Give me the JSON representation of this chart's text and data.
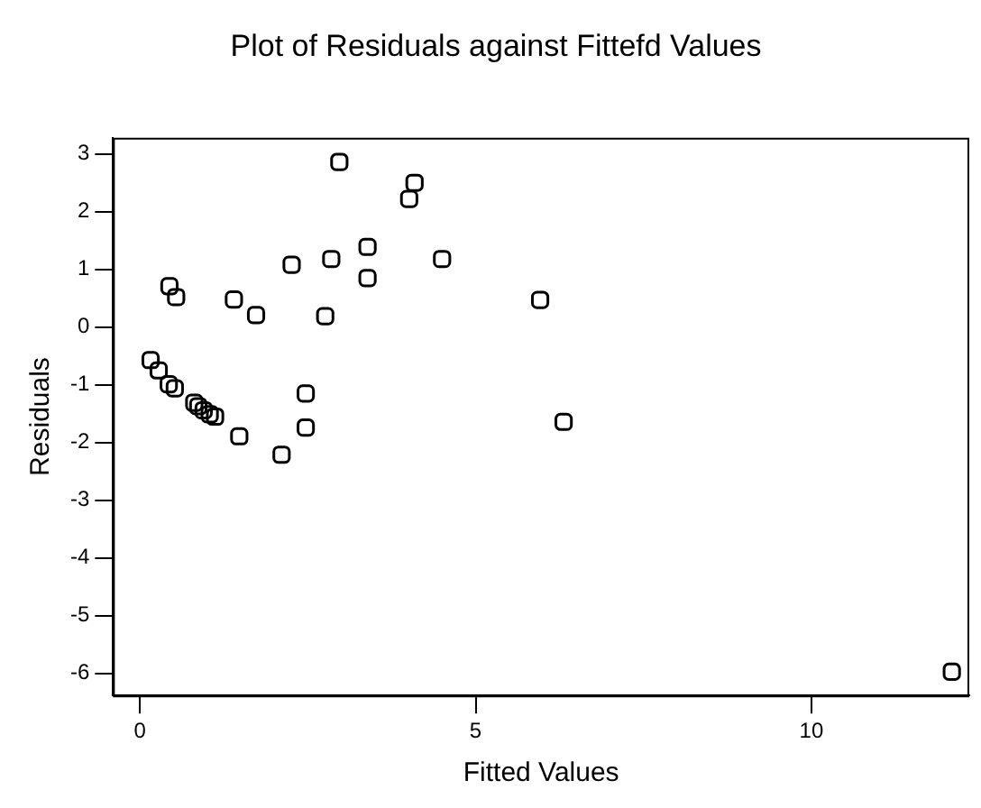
{
  "chart_data": {
    "type": "scatter",
    "title": "Plot of Residuals against Fittefd Values",
    "xlabel": "Fitted Values",
    "ylabel": "Residuals",
    "x": [
      2.97,
      4.09,
      4.01,
      3.39,
      3.39,
      2.85,
      2.26,
      4.5,
      5.96,
      0.44,
      0.54,
      1.4,
      1.73,
      2.76,
      0.16,
      0.28,
      0.43,
      0.52,
      0.81,
      0.87,
      0.95,
      1.04,
      1.12,
      2.47,
      2.47,
      1.48,
      2.11,
      6.31,
      12.09
    ],
    "values": [
      2.86,
      2.5,
      2.22,
      1.39,
      0.85,
      1.18,
      1.08,
      1.18,
      0.47,
      0.71,
      0.52,
      0.48,
      0.21,
      0.19,
      -0.57,
      -0.75,
      -0.99,
      -1.06,
      -1.31,
      -1.37,
      -1.44,
      -1.51,
      -1.55,
      -1.15,
      -1.74,
      -1.89,
      -2.21,
      -1.64,
      -5.97
    ],
    "color": "#000000",
    "marker": "square",
    "grid": false,
    "legend": false,
    "xlim": [
      -0.4,
      12.35
    ],
    "ylim": [
      -6.38,
      3.28
    ],
    "xticks": [
      0,
      5,
      10
    ],
    "yticks": [
      -6,
      -5,
      -4,
      -3,
      -2,
      -1,
      0,
      1,
      2,
      3
    ]
  }
}
